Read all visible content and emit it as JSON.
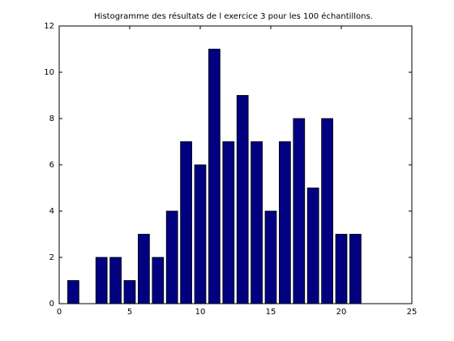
{
  "chart_data": {
    "type": "bar",
    "title": "Histogramme des résultats de l exercice 3 pour les 100 échantillons.",
    "xlabel": "",
    "ylabel": "",
    "x": [
      1,
      3,
      4,
      5,
      6,
      7,
      8,
      9,
      10,
      11,
      12,
      13,
      14,
      15,
      16,
      17,
      18,
      19,
      20,
      21
    ],
    "values": [
      1,
      2,
      2,
      1,
      3,
      2,
      4,
      7,
      6,
      11,
      7,
      9,
      7,
      4,
      7,
      8,
      5,
      8,
      3,
      3
    ],
    "xlim": [
      0,
      25
    ],
    "ylim": [
      0,
      12
    ],
    "xticks": [
      "0",
      "5",
      "10",
      "15",
      "20",
      "25"
    ],
    "yticks": [
      "0",
      "2",
      "4",
      "6",
      "8",
      "10",
      "12"
    ],
    "bar_color": "#000080",
    "grid": false,
    "legend": "none"
  }
}
